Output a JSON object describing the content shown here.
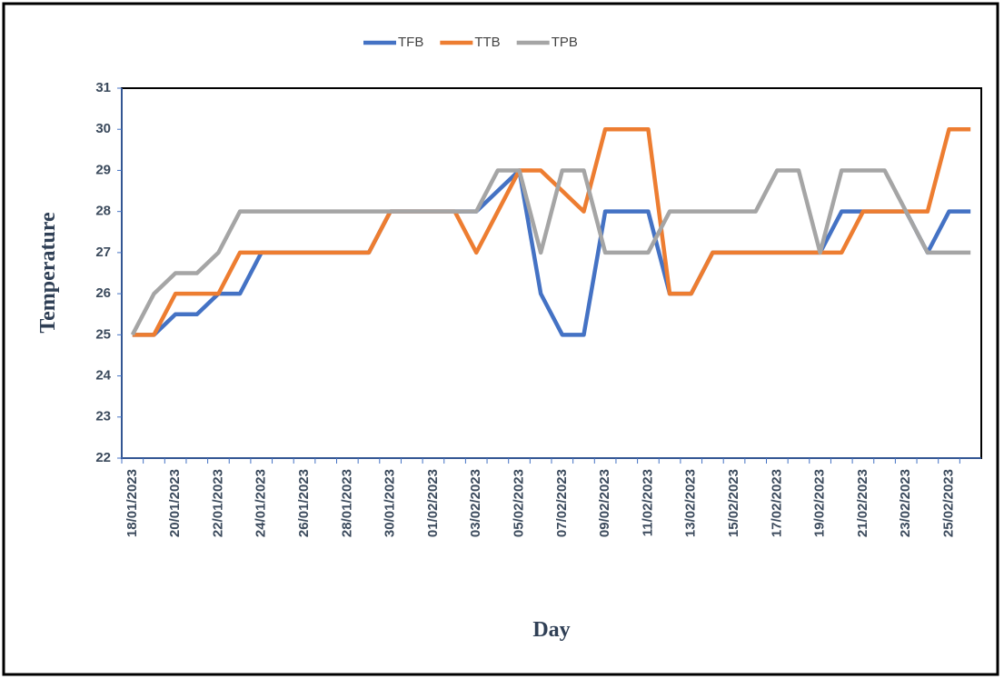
{
  "chart_data": {
    "type": "line",
    "x_label": "Day",
    "y_label": "Temperature",
    "categories": [
      "18/01/2023",
      null,
      "20/01/2023",
      null,
      "22/01/2023",
      null,
      "24/01/2023",
      null,
      "26/01/2023",
      null,
      "28/01/2023",
      null,
      "30/01/2023",
      null,
      "01/02/2023",
      null,
      "03/02/2023",
      null,
      "05/02/2023",
      null,
      "07/02/2023",
      null,
      "09/02/2023",
      null,
      "11/02/2023",
      null,
      "13/02/2023",
      null,
      "15/02/2023",
      null,
      "17/02/2023",
      null,
      "19/02/2023",
      null,
      "21/02/2023",
      null,
      "23/02/2023",
      null,
      "25/02/2023",
      null
    ],
    "series": [
      {
        "name": "TFB",
        "color": "#4472c4",
        "values": [
          25,
          25,
          25.5,
          25.5,
          26,
          26,
          27,
          27,
          27,
          27,
          27,
          27,
          28,
          28,
          28,
          28,
          28,
          28.5,
          29,
          26,
          25,
          25,
          28,
          28,
          28,
          26,
          26,
          27,
          27,
          27,
          27,
          27,
          27,
          28,
          28,
          28,
          28,
          27,
          28,
          28
        ]
      },
      {
        "name": "TTB",
        "color": "#ed7d31",
        "values": [
          25,
          25,
          26,
          26,
          26,
          27,
          27,
          27,
          27,
          27,
          27,
          27,
          28,
          28,
          28,
          28,
          27,
          28,
          29,
          29,
          28.5,
          28,
          30,
          30,
          30,
          26,
          26,
          27,
          27,
          27,
          27,
          27,
          27,
          27,
          28,
          28,
          28,
          28,
          30,
          30
        ]
      },
      {
        "name": "TPB",
        "color": "#a5a5a5",
        "values": [
          25,
          26,
          26.5,
          26.5,
          27,
          28,
          28,
          28,
          28,
          28,
          28,
          28,
          28,
          28,
          28,
          28,
          28,
          29,
          29,
          27,
          29,
          29,
          27,
          27,
          27,
          28,
          28,
          28,
          28,
          28,
          29,
          29,
          27,
          29,
          29,
          29,
          28,
          27,
          27,
          27
        ]
      }
    ],
    "ylim": [
      22,
      31
    ],
    "yticks": [
      22,
      23,
      24,
      25,
      26,
      27,
      28,
      29,
      30,
      31
    ],
    "legend": "top",
    "grid": false
  }
}
